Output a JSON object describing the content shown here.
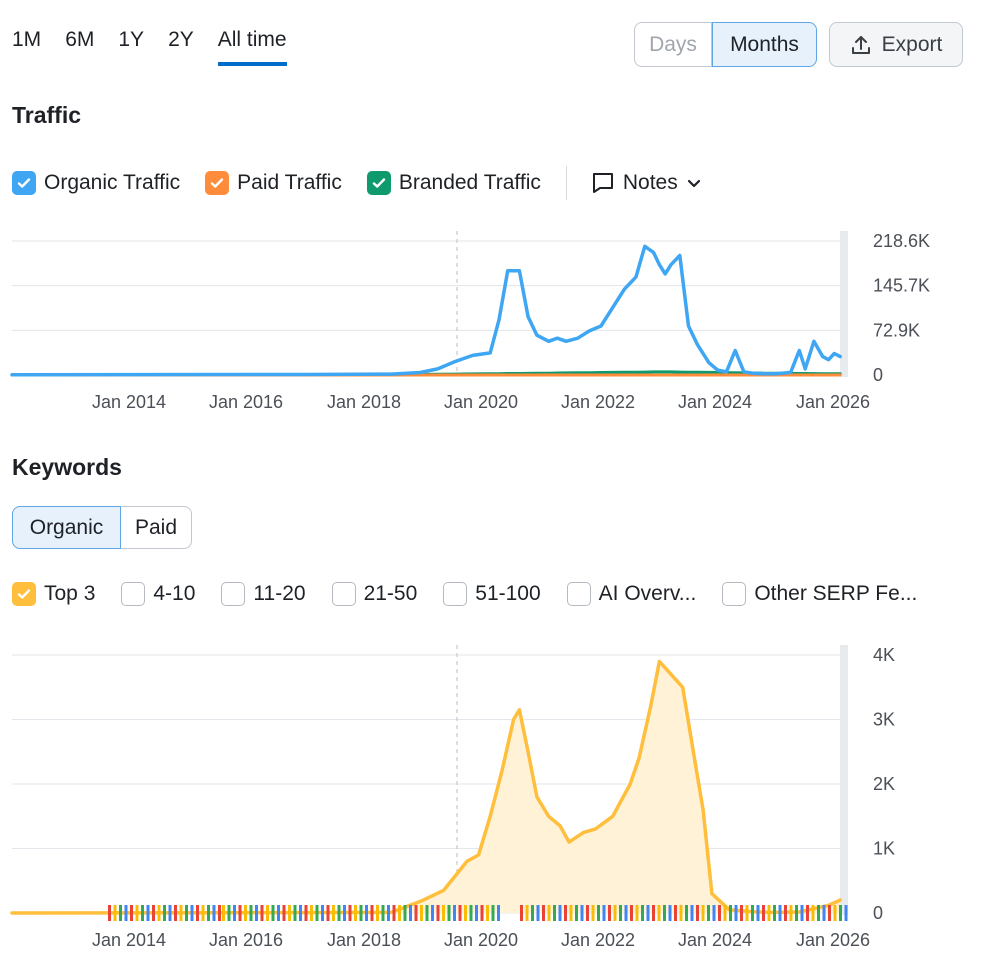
{
  "period_tabs": [
    "1M",
    "6M",
    "1Y",
    "2Y",
    "All time"
  ],
  "active_period": "All time",
  "granularity": {
    "days": "Days",
    "months": "Months",
    "selected": "Months"
  },
  "export_label": "Export",
  "traffic": {
    "title": "Traffic",
    "legend": [
      {
        "label": "Organic Traffic",
        "color": "#3ea6f2",
        "checked": true
      },
      {
        "label": "Paid Traffic",
        "color": "#ff8c3b",
        "checked": true
      },
      {
        "label": "Branded Traffic",
        "color": "#0e9a6c",
        "checked": true
      }
    ],
    "notes_label": "Notes"
  },
  "keywords": {
    "title": "Keywords",
    "toggle": {
      "organic": "Organic",
      "paid": "Paid",
      "selected": "Organic"
    },
    "filters": [
      {
        "label": "Top 3",
        "checked": true,
        "color": "#ffbe3b"
      },
      {
        "label": "4-10",
        "checked": false
      },
      {
        "label": "11-20",
        "checked": false
      },
      {
        "label": "21-50",
        "checked": false
      },
      {
        "label": "51-100",
        "checked": false
      },
      {
        "label": "AI Overv...",
        "checked": false
      },
      {
        "label": "Other SERP Fe...",
        "checked": false
      }
    ]
  },
  "chart_data": [
    {
      "type": "line",
      "name": "traffic-chart",
      "title": "Traffic",
      "x_ticks": [
        "Jan 2014",
        "Jan 2016",
        "Jan 2018",
        "Jan 2020",
        "Jan 2022",
        "Jan 2024",
        "Jan 2026"
      ],
      "y_ticks": [
        "0",
        "72.9K",
        "145.7K",
        "218.6K"
      ],
      "ylim": [
        0,
        218600
      ],
      "xlim": [
        2012.0,
        2026.3
      ],
      "x": [
        2012.0,
        2017.0,
        2018.5,
        2019.0,
        2019.3,
        2019.6,
        2019.9,
        2020.2,
        2020.35,
        2020.5,
        2020.7,
        2020.85,
        2021.0,
        2021.2,
        2021.35,
        2021.5,
        2021.7,
        2021.9,
        2022.1,
        2022.3,
        2022.5,
        2022.7,
        2022.85,
        2023.0,
        2023.1,
        2023.2,
        2023.3,
        2023.45,
        2023.6,
        2023.75,
        2023.95,
        2024.1,
        2024.25,
        2024.4,
        2024.55,
        2024.7,
        2024.9,
        2025.1,
        2025.35,
        2025.5,
        2025.6,
        2025.75,
        2025.9,
        2026.0,
        2026.1,
        2026.2
      ],
      "series": [
        {
          "name": "Organic Traffic",
          "color": "#3ea6f2",
          "values": [
            500,
            800,
            1500,
            4000,
            10000,
            22000,
            32000,
            36000,
            90000,
            170000,
            170000,
            95000,
            65000,
            55000,
            60000,
            55000,
            60000,
            72000,
            80000,
            110000,
            140000,
            160000,
            210000,
            200000,
            180000,
            165000,
            180000,
            195000,
            80000,
            50000,
            20000,
            8000,
            5000,
            40000,
            5000,
            3000,
            2000,
            2000,
            4000,
            40000,
            10000,
            55000,
            30000,
            25000,
            35000,
            30000
          ]
        },
        {
          "name": "Paid Traffic",
          "color": "#ff8c3b",
          "values": [
            0,
            0,
            0,
            0,
            0,
            0,
            0,
            0,
            0,
            0,
            0,
            0,
            0,
            0,
            0,
            0,
            0,
            0,
            0,
            0,
            0,
            0,
            0,
            0,
            0,
            0,
            0,
            0,
            0,
            0,
            0,
            0,
            0,
            0,
            0,
            0,
            0,
            0,
            0,
            0,
            0,
            0,
            0,
            0,
            0,
            0
          ]
        },
        {
          "name": "Branded Traffic",
          "color": "#0e9a6c",
          "values": [
            0,
            0,
            0,
            800,
            1200,
            1500,
            1800,
            2000,
            2200,
            2400,
            2500,
            2600,
            2800,
            3000,
            3200,
            3400,
            3600,
            3800,
            4000,
            4200,
            4400,
            4600,
            4800,
            5000,
            5000,
            5000,
            5000,
            4800,
            4600,
            4400,
            4200,
            4000,
            3800,
            3600,
            3400,
            3200,
            3000,
            2800,
            2600,
            2500,
            2400,
            2300,
            2200,
            2100,
            2000,
            2000
          ]
        }
      ]
    },
    {
      "type": "area",
      "name": "keywords-chart",
      "title": "Keywords",
      "x_ticks": [
        "Jan 2014",
        "Jan 2016",
        "Jan 2018",
        "Jan 2020",
        "Jan 2022",
        "Jan 2024",
        "Jan 2026"
      ],
      "y_ticks": [
        "0",
        "1K",
        "2K",
        "3K",
        "4K"
      ],
      "ylim": [
        0,
        4000
      ],
      "xlim": [
        2012.0,
        2026.3
      ],
      "x": [
        2012.0,
        2018.5,
        2019.0,
        2019.4,
        2019.8,
        2020.0,
        2020.2,
        2020.4,
        2020.6,
        2020.7,
        2020.85,
        2021.0,
        2021.2,
        2021.4,
        2021.55,
        2021.8,
        2022.0,
        2022.3,
        2022.6,
        2022.75,
        2022.85,
        2022.95,
        2023.1,
        2023.3,
        2023.5,
        2023.7,
        2023.85,
        2024.0,
        2024.3,
        2024.7,
        2025.0,
        2025.5,
        2026.0,
        2026.2
      ],
      "series": [
        {
          "name": "Top 3",
          "color": "#ffbe3b",
          "values": [
            0,
            10,
            180,
            350,
            800,
            900,
            1500,
            2200,
            3000,
            3150,
            2500,
            1800,
            1500,
            1350,
            1100,
            1250,
            1300,
            1500,
            2000,
            2400,
            2800,
            3200,
            3900,
            3700,
            3500,
            2400,
            1600,
            300,
            50,
            20,
            10,
            15,
            120,
            200
          ]
        }
      ]
    }
  ]
}
